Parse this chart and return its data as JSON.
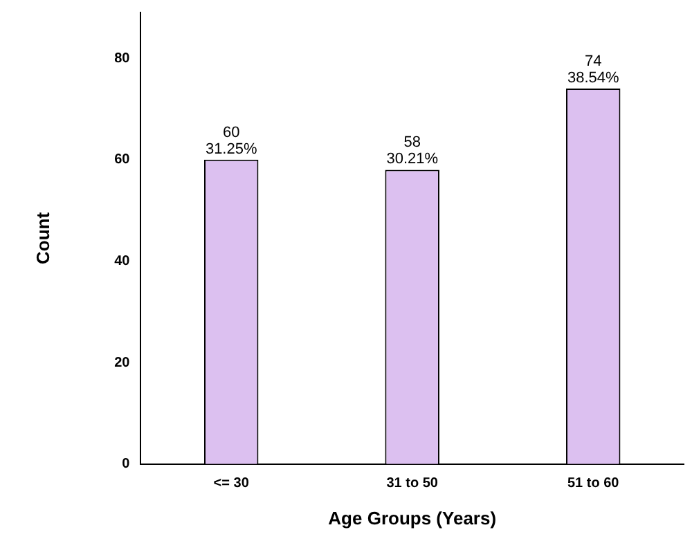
{
  "chart_data": {
    "type": "bar",
    "xlabel": "Age Groups (Years)",
    "ylabel": "Count",
    "categories": [
      "<= 30",
      "31 to 50",
      "51 to 60"
    ],
    "values": [
      60,
      58,
      74
    ],
    "value_labels": [
      "60\n31.25%",
      "58\n30.21%",
      "74\n38.54%"
    ],
    "color": "#dcc0f0",
    "ylim": [
      0,
      89
    ],
    "yticks": [
      0,
      20,
      40,
      60,
      80
    ],
    "grid": false,
    "legend": false
  }
}
